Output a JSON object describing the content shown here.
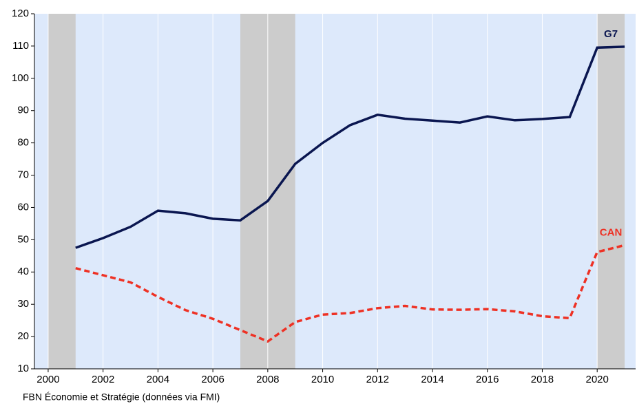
{
  "chart_data": {
    "type": "line",
    "unit_label": "%",
    "source": "FBN Économie et Stratégie (données via FMI)",
    "x": [
      2001,
      2002,
      2003,
      2004,
      2005,
      2006,
      2007,
      2008,
      2009,
      2010,
      2011,
      2012,
      2013,
      2014,
      2015,
      2016,
      2017,
      2018,
      2019,
      2020,
      2021
    ],
    "series": [
      {
        "name": "G7",
        "color": "#0a1650",
        "dash": false,
        "values": [
          47.5,
          50.5,
          54,
          59,
          58.2,
          56.5,
          56,
          62,
          73.5,
          80,
          85.5,
          88.7,
          87.5,
          86.9,
          86.3,
          88.2,
          87,
          87.4,
          88,
          109.5,
          109.8
        ]
      },
      {
        "name": "CAN",
        "color": "#ee3124",
        "dash": true,
        "values": [
          41.2,
          39,
          36.8,
          32.3,
          28.2,
          25.5,
          22,
          18.5,
          24.5,
          26.8,
          27.3,
          28.8,
          29.5,
          28.4,
          28.3,
          28.5,
          27.8,
          26.3,
          25.7,
          46.2,
          48.3
        ]
      }
    ],
    "shaded": [
      [
        2000,
        2001
      ],
      [
        2007,
        2009
      ],
      [
        2020,
        2021
      ]
    ],
    "xlim": [
      1999.5,
      2021.4
    ],
    "xticks": [
      2000,
      2002,
      2004,
      2006,
      2008,
      2010,
      2012,
      2014,
      2016,
      2018,
      2020
    ],
    "ylim": [
      10,
      120
    ],
    "yticks": [
      10,
      20,
      30,
      40,
      50,
      60,
      70,
      80,
      90,
      100,
      110,
      120
    ],
    "grid": true
  }
}
